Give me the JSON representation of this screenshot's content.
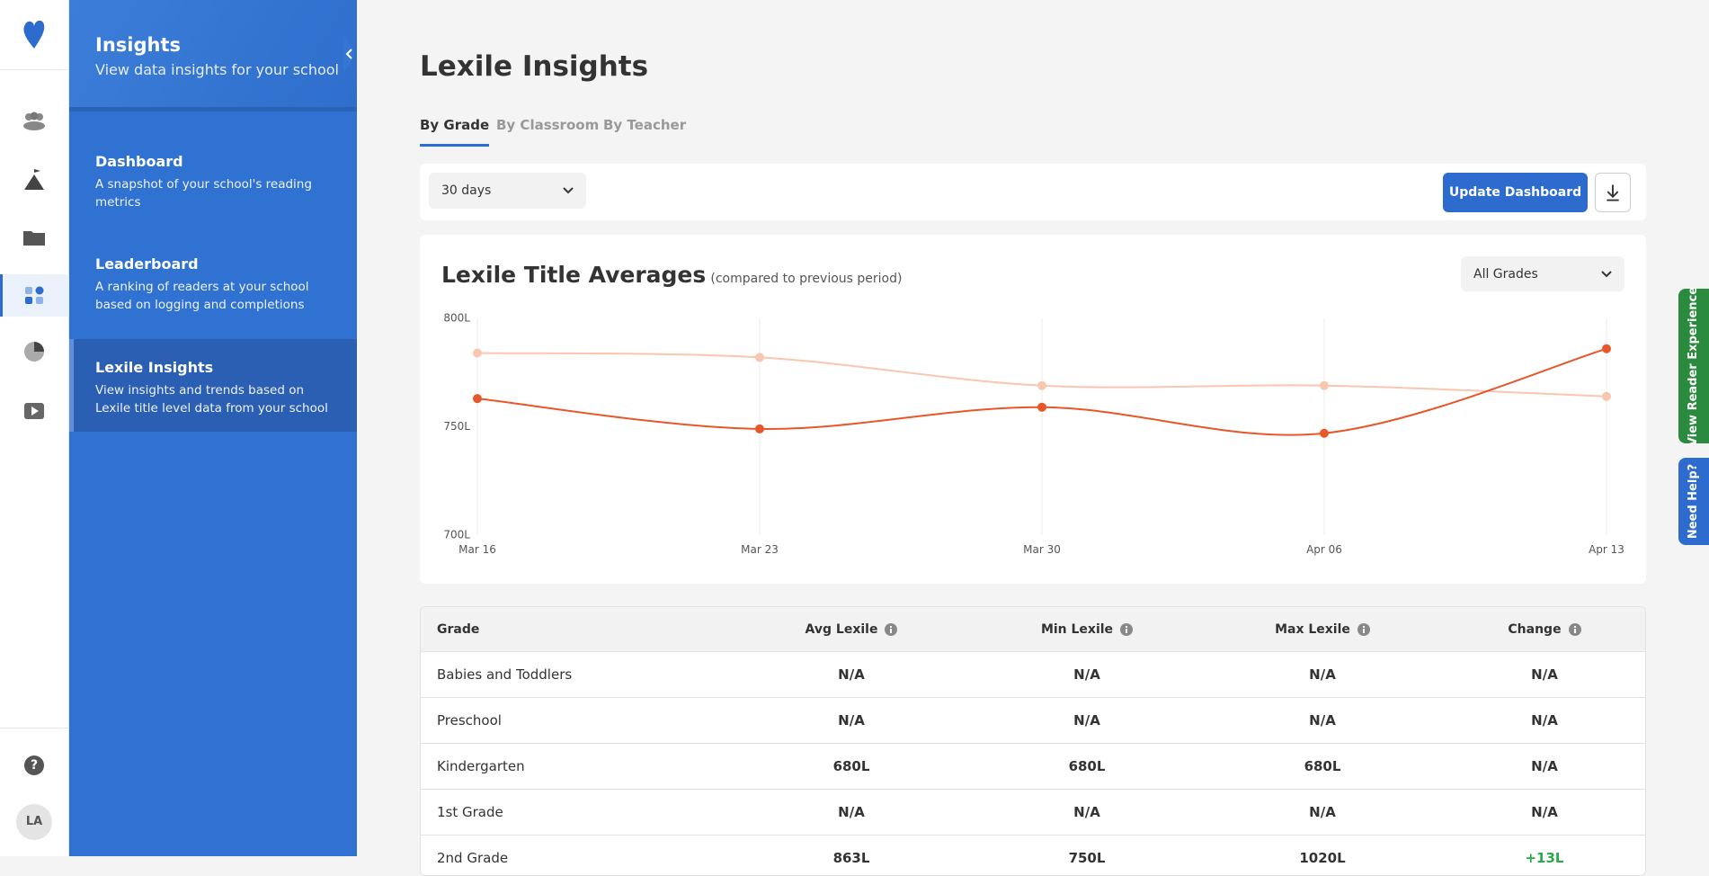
{
  "rail": {
    "help": "?",
    "avatar": "LA"
  },
  "sidebar": {
    "title": "Insights",
    "subtitle": "View data insights for your school",
    "items": [
      {
        "title": "Dashboard",
        "description": "A snapshot of your school's reading metrics"
      },
      {
        "title": "Leaderboard",
        "description": "A ranking of readers at your school based on logging and completions"
      },
      {
        "title": "Lexile Insights",
        "description": "View insights and trends based on Lexile title level data from your school"
      }
    ]
  },
  "header": {
    "title": "Lexile Insights",
    "tabs": [
      "By Grade",
      "By Classroom",
      "By Teacher"
    ]
  },
  "filters": {
    "period": "30 days",
    "button": "Update Dashboard",
    "grade": "All Grades"
  },
  "chart_data": {
    "type": "line",
    "title": "Lexile Title Averages",
    "subtitle": "(compared to previous period)",
    "categories": [
      "Mar 16",
      "Mar 23",
      "Mar 30",
      "Apr 06",
      "Apr 13"
    ],
    "series": [
      {
        "color": "#f9c6b0",
        "values": [
          784,
          782,
          769,
          769,
          764
        ]
      },
      {
        "color": "#e8572a",
        "values": [
          763,
          749,
          759,
          747,
          786
        ]
      }
    ],
    "ylim": [
      700,
      800
    ],
    "yticks": [
      {
        "value": 700,
        "label": "700L"
      },
      {
        "value": 750,
        "label": "750L"
      },
      {
        "value": 800,
        "label": "800L"
      }
    ],
    "grid": true
  },
  "table": {
    "columns": [
      "Grade",
      "Avg Lexile",
      "Min Lexile",
      "Max Lexile",
      "Change"
    ],
    "rows": [
      [
        "Babies and Toddlers",
        "N/A",
        "N/A",
        "N/A",
        "N/A"
      ],
      [
        "Preschool",
        "N/A",
        "N/A",
        "N/A",
        "N/A"
      ],
      [
        "Kindergarten",
        "680L",
        "680L",
        "680L",
        "N/A"
      ],
      [
        "1st Grade",
        "N/A",
        "N/A",
        "N/A",
        "N/A"
      ],
      [
        "2nd Grade",
        "863L",
        "750L",
        "1020L",
        "+13L"
      ]
    ]
  },
  "side_tabs": [
    "View Reader Experience",
    "Need Help?"
  ]
}
